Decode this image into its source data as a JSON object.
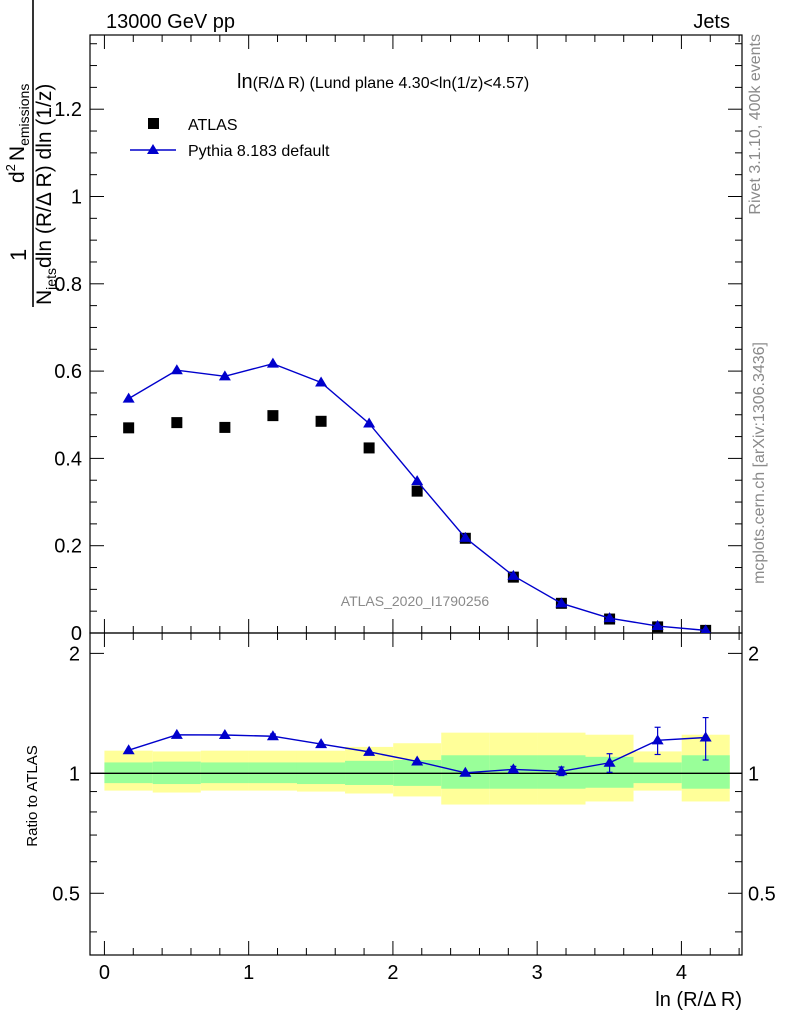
{
  "header": {
    "left": "13000 GeV pp",
    "right": "Jets"
  },
  "side_text": {
    "rivet": "Rivet 3.1.10,  400k events",
    "mcplots": "mcplots.cern.ch [arXiv:1306.3436]"
  },
  "colors": {
    "pythia": "#0000cc",
    "atlas": "#000000",
    "band_inner": "#99ff99",
    "band_outer": "#ffff99"
  },
  "chart_data": [
    {
      "type": "scatter",
      "title": "ln(R/Δ R) (Lund plane 4.30<ln(1/z)<4.57)",
      "title_main": "ln",
      "title_rest": "(R/Δ R) (Lund plane 4.30<ln(1/z)<4.57)",
      "watermark": "ATLAS_2020_I1790256",
      "ylabel": {
        "prefix": "1",
        "njets_N": "N",
        "njets_sub": "jets",
        "denominator_rest": "dln (R/Δ R) dln (1/z)",
        "numerator_d": "d",
        "numerator_exp": "2",
        "numerator_N": "N",
        "numerator_sub": "emissions"
      },
      "xlim": [
        -0.1,
        4.42
      ],
      "ylim": [
        0,
        1.37
      ],
      "yticks": [
        0,
        0.2,
        0.4,
        0.6,
        0.8,
        1,
        1.2
      ],
      "ytick_labels": [
        "0",
        "0.2",
        "0.4",
        "0.6",
        "0.8",
        "1",
        "1.2"
      ],
      "legend": {
        "placement": "top-left",
        "entries": [
          "ATLAS",
          "Pythia 8.183 default"
        ]
      },
      "x": [
        0.168,
        0.502,
        0.835,
        1.168,
        1.502,
        1.835,
        2.168,
        2.502,
        2.835,
        3.168,
        3.502,
        3.835,
        4.168
      ],
      "series": [
        {
          "name": "ATLAS",
          "marker": "square",
          "values": [
            0.47,
            0.482,
            0.471,
            0.498,
            0.485,
            0.424,
            0.325,
            0.217,
            0.128,
            0.068,
            0.032,
            0.014,
            0.006
          ]
        },
        {
          "name": "Pythia 8.183 default",
          "marker": "triangle",
          "values": [
            0.537,
            0.602,
            0.588,
            0.617,
            0.574,
            0.48,
            0.348,
            0.218,
            0.131,
            0.068,
            0.034,
            0.016,
            0.006
          ],
          "errors": [
            0.004,
            0.004,
            0.004,
            0.008,
            0.004,
            0.004,
            0.003,
            0.002,
            0.002,
            0.001,
            0.001,
            0.001,
            0.001
          ]
        }
      ]
    },
    {
      "type": "scatter",
      "ylabel": "Ratio to ATLAS",
      "xlabel": "ln (R/Δ R)",
      "xlim": [
        -0.1,
        4.42
      ],
      "ylim": [
        0.35,
        2.25
      ],
      "xticks": [
        0,
        1,
        2,
        3,
        4
      ],
      "xtick_labels": [
        "0",
        "1",
        "2",
        "3",
        "4"
      ],
      "yticks": [
        0.5,
        1,
        2
      ],
      "ytick_labels": [
        "0.5",
        "1",
        "2"
      ],
      "reference_line": 1,
      "bin_edges": [
        0,
        0.335,
        0.668,
        1.002,
        1.335,
        1.668,
        2.002,
        2.335,
        2.668,
        3.002,
        3.335,
        3.668,
        4.002,
        4.335
      ],
      "band_outer": [
        [
          0.905,
          1.14
        ],
        [
          0.895,
          1.135
        ],
        [
          0.905,
          1.14
        ],
        [
          0.905,
          1.14
        ],
        [
          0.9,
          1.14
        ],
        [
          0.89,
          1.165
        ],
        [
          0.875,
          1.19
        ],
        [
          0.835,
          1.265
        ],
        [
          0.835,
          1.265
        ],
        [
          0.835,
          1.265
        ],
        [
          0.85,
          1.25
        ],
        [
          0.905,
          1.135
        ],
        [
          0.85,
          1.25
        ]
      ],
      "band_inner": [
        [
          0.945,
          1.065
        ],
        [
          0.94,
          1.07
        ],
        [
          0.945,
          1.065
        ],
        [
          0.945,
          1.065
        ],
        [
          0.94,
          1.065
        ],
        [
          0.935,
          1.075
        ],
        [
          0.93,
          1.08
        ],
        [
          0.915,
          1.11
        ],
        [
          0.915,
          1.11
        ],
        [
          0.915,
          1.11
        ],
        [
          0.92,
          1.1
        ],
        [
          0.945,
          1.065
        ],
        [
          0.915,
          1.11
        ]
      ],
      "x": [
        0.168,
        0.502,
        0.835,
        1.168,
        1.502,
        1.835,
        2.168,
        2.502,
        2.835,
        3.168,
        3.502,
        3.835,
        4.168
      ],
      "series": [
        {
          "name": "Pythia 8.183 default",
          "values": [
            1.143,
            1.249,
            1.248,
            1.239,
            1.184,
            1.132,
            1.071,
            1.003,
            1.023,
            1.012,
            1.063,
            1.21,
            1.23
          ],
          "errors": [
            0.008,
            0.008,
            0.008,
            0.016,
            0.008,
            0.01,
            0.01,
            0.012,
            0.018,
            0.025,
            0.057,
            0.095,
            0.15
          ]
        }
      ]
    }
  ]
}
